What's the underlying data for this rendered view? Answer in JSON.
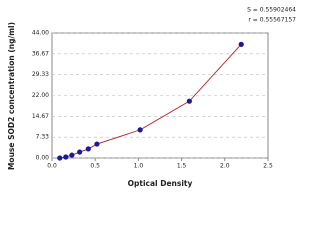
{
  "chart_data": {
    "type": "scatter",
    "x_label": "Optical Density",
    "y_label": "Mouse SOD2 concentration (ng/ml)",
    "annotations": [
      "S = 0.55902464",
      "r = 0.55567157"
    ],
    "series": [
      {
        "color": "#1a1aa0",
        "line_color": "#b22222",
        "x": [
          0.09,
          0.16,
          0.23,
          0.32,
          0.42,
          0.52,
          1.02,
          1.59,
          2.19
        ],
        "values": [
          0,
          0.35,
          1,
          2.1,
          3.2,
          4.9,
          9.9,
          20,
          40
        ]
      }
    ],
    "xlim": [
      0,
      2.5
    ],
    "xticks": [
      {
        "value": 0,
        "label": "0.0"
      },
      0.5,
      {
        "value": 1,
        "label": "1.0"
      },
      1.5,
      {
        "value": 2,
        "label": "2.0"
      },
      2.5
    ],
    "ylim": [
      0,
      44
    ],
    "yticks": [
      {
        "value": 0,
        "label": "0.00"
      },
      7.33,
      14.67,
      {
        "value": 22,
        "label": "22.00"
      },
      29.33,
      36.67,
      {
        "value": 44,
        "label": "44.00"
      }
    ],
    "grid": true
  }
}
